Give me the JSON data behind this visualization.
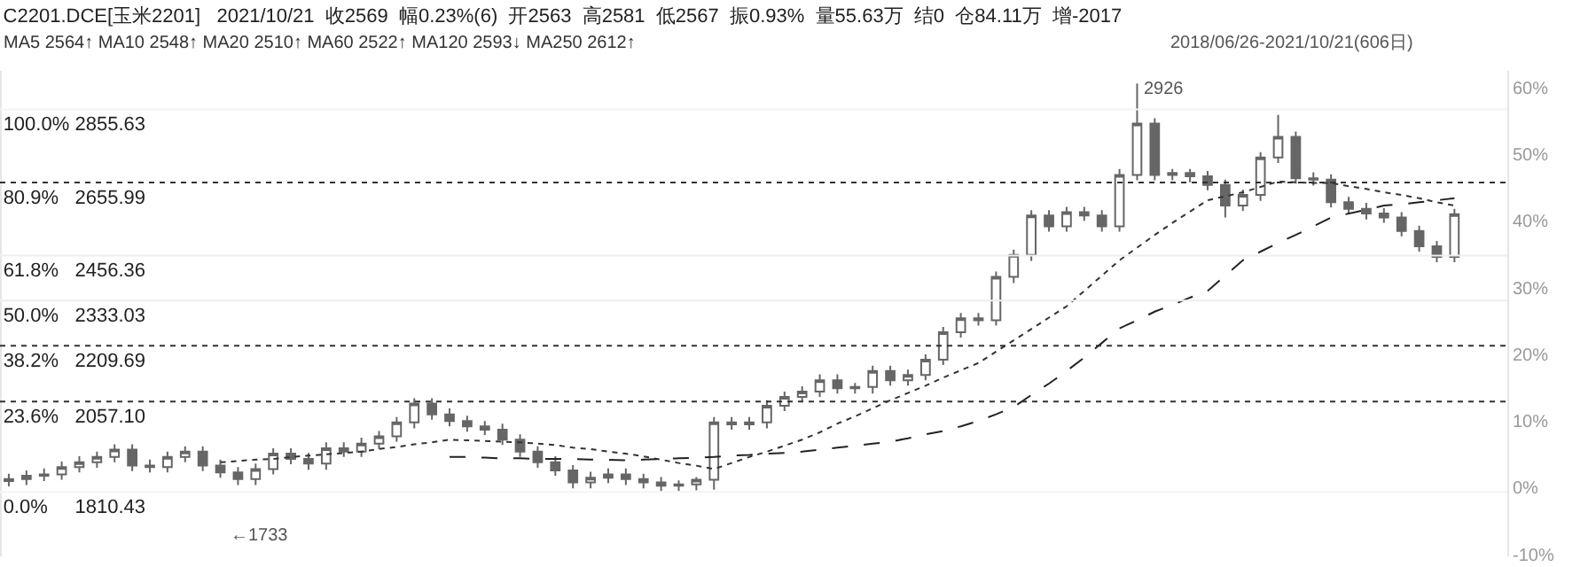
{
  "chart_data": {
    "type": "candlestick",
    "title": "C2201.DCE[玉米2201]   2021/10/21  收2569  幅0.23%(6)  开2563  高2581  低2567  振0.93%  量55.63万  结0  仓84.11万  增-2017",
    "subtitle": "MA5 2564↑ MA10 2548↑ MA20 2510↑ MA60 2522↑ MA120 2593↓ MA250 2612↑",
    "annotations": [
      "2018/06/26-2021/10/21(606日)",
      "2926",
      "←1733"
    ],
    "categories": [
      null,
      null,
      null,
      null,
      null,
      null,
      null,
      null,
      null,
      null,
      null,
      null,
      null,
      null,
      null,
      null,
      null,
      null,
      null,
      null,
      null,
      null,
      null,
      null,
      null,
      null,
      null,
      null,
      null,
      null,
      null,
      null,
      null,
      null,
      null,
      null,
      null,
      null,
      null,
      null,
      null,
      null,
      null,
      null,
      null,
      null,
      null,
      null,
      null,
      null,
      null,
      null,
      null,
      null,
      null,
      null,
      null,
      null,
      null,
      null,
      null,
      null,
      null,
      null,
      null,
      null,
      null,
      null,
      null,
      null,
      null,
      null,
      null,
      null,
      null,
      null,
      null,
      null,
      null,
      null,
      null,
      null,
      null
    ],
    "color": "#666666",
    "ohlc": [
      [
        1.0,
        2.1,
        0.2,
        1.3
      ],
      [
        1.3,
        2.6,
        0.4,
        1.8
      ],
      [
        1.8,
        2.9,
        1.0,
        2.0
      ],
      [
        2.0,
        3.9,
        1.2,
        3.1
      ],
      [
        3.1,
        4.7,
        2.3,
        3.8
      ],
      [
        3.8,
        5.4,
        3.0,
        4.6
      ],
      [
        4.6,
        6.5,
        3.8,
        5.7
      ],
      [
        5.7,
        6.5,
        2.5,
        3.3
      ],
      [
        3.3,
        4.2,
        2.3,
        3.1
      ],
      [
        3.1,
        5.4,
        2.3,
        4.6
      ],
      [
        4.6,
        6.2,
        3.8,
        5.4
      ],
      [
        5.4,
        6.2,
        2.5,
        3.3
      ],
      [
        3.3,
        4.2,
        1.5,
        2.3
      ],
      [
        2.3,
        3.1,
        0.4,
        1.3
      ],
      [
        1.3,
        3.6,
        0.4,
        2.8
      ],
      [
        2.8,
        5.9,
        2.0,
        5.1
      ],
      [
        5.1,
        5.9,
        3.5,
        4.3
      ],
      [
        4.3,
        5.2,
        2.7,
        3.6
      ],
      [
        3.6,
        6.8,
        2.7,
        5.9
      ],
      [
        5.9,
        6.8,
        4.6,
        5.4
      ],
      [
        5.4,
        7.5,
        4.6,
        6.6
      ],
      [
        6.6,
        8.5,
        5.8,
        7.7
      ],
      [
        7.7,
        10.6,
        6.9,
        9.8
      ],
      [
        9.8,
        13.4,
        8.9,
        12.6
      ],
      [
        12.6,
        13.4,
        10.2,
        11.0
      ],
      [
        11.0,
        11.9,
        9.2,
        10.0
      ],
      [
        10.0,
        10.8,
        8.4,
        9.2
      ],
      [
        9.2,
        10.0,
        7.9,
        8.7
      ],
      [
        8.7,
        9.6,
        6.4,
        7.2
      ],
      [
        7.2,
        8.0,
        4.6,
        5.4
      ],
      [
        5.4,
        6.2,
        3.0,
        3.8
      ],
      [
        3.8,
        4.7,
        1.8,
        2.6
      ],
      [
        2.6,
        3.4,
        -0.1,
        0.8
      ],
      [
        0.8,
        2.4,
        -0.1,
        1.5
      ],
      [
        1.5,
        2.9,
        0.7,
        2.0
      ],
      [
        2.0,
        2.9,
        0.4,
        1.3
      ],
      [
        1.3,
        2.1,
        -0.1,
        0.8
      ],
      [
        0.8,
        1.6,
        -0.5,
        0.3
      ],
      [
        0.3,
        1.1,
        -0.5,
        0.5
      ],
      [
        0.5,
        1.6,
        -0.4,
        1.2
      ],
      [
        1.2,
        10.6,
        -0.3,
        9.8
      ],
      [
        9.8,
        10.6,
        8.7,
        9.5
      ],
      [
        9.5,
        10.6,
        8.7,
        9.8
      ],
      [
        9.8,
        13.1,
        8.9,
        12.3
      ],
      [
        12.3,
        14.4,
        11.5,
        13.6
      ],
      [
        13.6,
        15.2,
        12.8,
        14.4
      ],
      [
        14.4,
        17.0,
        13.6,
        16.1
      ],
      [
        16.1,
        17.0,
        14.1,
        14.9
      ],
      [
        14.9,
        15.7,
        14.1,
        15.1
      ],
      [
        15.1,
        18.3,
        14.1,
        17.5
      ],
      [
        17.5,
        18.3,
        15.3,
        16.1
      ],
      [
        16.1,
        17.7,
        15.3,
        16.9
      ],
      [
        16.9,
        20.0,
        16.1,
        19.2
      ],
      [
        19.2,
        24.1,
        18.4,
        23.3
      ],
      [
        23.3,
        26.2,
        22.5,
        25.4
      ],
      [
        25.4,
        26.2,
        24.3,
        25.1
      ],
      [
        25.1,
        32.4,
        24.3,
        31.6
      ],
      [
        31.6,
        35.7,
        30.7,
        34.9
      ],
      [
        34.9,
        41.6,
        34.0,
        40.8
      ],
      [
        40.8,
        41.6,
        38.4,
        39.2
      ],
      [
        39.2,
        42.1,
        38.4,
        41.3
      ],
      [
        41.3,
        42.1,
        40.0,
        40.8
      ],
      [
        40.8,
        41.6,
        38.4,
        39.2
      ],
      [
        39.2,
        47.8,
        38.4,
        46.9
      ],
      [
        46.9,
        60.6,
        46.1,
        54.6
      ],
      [
        54.6,
        55.4,
        46.1,
        46.9
      ],
      [
        46.9,
        47.8,
        46.1,
        47.2
      ],
      [
        47.2,
        47.8,
        45.8,
        46.7
      ],
      [
        46.7,
        47.5,
        44.6,
        45.4
      ],
      [
        45.4,
        46.2,
        40.5,
        42.3
      ],
      [
        42.3,
        44.7,
        41.5,
        43.9
      ],
      [
        43.9,
        50.3,
        43.0,
        49.5
      ],
      [
        49.5,
        55.9,
        48.7,
        52.6
      ],
      [
        52.6,
        53.4,
        45.6,
        46.4
      ],
      [
        46.4,
        47.3,
        45.3,
        46.2
      ],
      [
        46.2,
        47.0,
        42.0,
        42.8
      ],
      [
        42.8,
        43.6,
        41.0,
        41.8
      ],
      [
        41.8,
        42.7,
        40.2,
        41.1
      ],
      [
        41.1,
        41.9,
        39.7,
        40.5
      ],
      [
        40.5,
        41.3,
        37.7,
        38.5
      ],
      [
        38.5,
        39.3,
        35.4,
        36.2
      ],
      [
        36.2,
        37.0,
        33.8,
        34.6
      ],
      [
        34.6,
        41.8,
        33.8,
        41.0
      ]
    ],
    "series": [
      {
        "type": "line",
        "color": "#333333",
        "line_style": "dotted",
        "values": [
          null,
          null,
          null,
          null,
          null,
          null,
          null,
          null,
          null,
          null,
          null,
          null,
          3.8,
          4.0,
          4.2,
          4.3,
          4.6,
          4.8,
          5.0,
          5.2,
          5.4,
          5.8,
          6.1,
          6.5,
          6.8,
          7.2,
          7.1,
          7.0,
          6.9,
          6.8,
          6.6,
          6.4,
          6.0,
          5.8,
          5.4,
          5.1,
          4.7,
          4.2,
          3.7,
          3.3,
          2.8,
          3.7,
          4.6,
          5.4,
          6.3,
          7.2,
          8.3,
          9.6,
          10.7,
          11.9,
          13.1,
          14.2,
          15.3,
          16.5,
          17.6,
          18.7,
          20.4,
          22.1,
          23.8,
          25.5,
          27.2,
          29.5,
          31.8,
          34.1,
          36.0,
          37.9,
          39.7,
          41.4,
          43.1,
          43.7,
          44.3,
          45.1,
          45.9,
          45.8,
          45.7,
          45.7,
          45.2,
          44.8,
          44.3,
          43.9,
          43.4,
          42.8,
          42.3
        ]
      },
      {
        "type": "line",
        "color": "#222222",
        "line_style": "dashed",
        "values": [
          null,
          null,
          null,
          null,
          null,
          null,
          null,
          null,
          null,
          null,
          null,
          null,
          null,
          null,
          null,
          null,
          null,
          null,
          null,
          null,
          null,
          null,
          null,
          null,
          null,
          4.6,
          4.6,
          4.5,
          4.4,
          4.4,
          4.3,
          4.3,
          4.3,
          4.2,
          4.2,
          4.1,
          4.2,
          4.3,
          4.4,
          4.5,
          4.6,
          4.8,
          4.9,
          5.1,
          5.2,
          5.4,
          5.7,
          6.0,
          6.3,
          6.6,
          6.9,
          7.4,
          8.0,
          8.5,
          9.2,
          10.0,
          11.0,
          12.1,
          13.9,
          15.6,
          17.5,
          19.5,
          21.7,
          23.9,
          25.1,
          26.4,
          27.4,
          28.5,
          29.5,
          31.8,
          34.1,
          35.4,
          36.7,
          37.9,
          39.2,
          40.5,
          41.1,
          41.7,
          42.3,
          42.5,
          42.8,
          43.1,
          43.4
        ]
      }
    ],
    "ylim": [
      -10.3,
      62.5
    ],
    "yticks": [
      {
        "value": 60,
        "label": "60%"
      },
      {
        "value": 50,
        "label": "50%"
      },
      {
        "value": 40,
        "label": "40%"
      },
      {
        "value": 30,
        "label": "30%"
      },
      {
        "value": 20,
        "label": "20%"
      },
      {
        "value": 10,
        "label": "10%"
      },
      {
        "value": 0,
        "label": "0%"
      },
      {
        "value": -10,
        "label": "-10%"
      }
    ],
    "y2lim": [
      1634.3,
      2960.8
    ],
    "y2ticks": [
      2855.63,
      2655.99,
      2456.36,
      2333.03,
      2209.69,
      {
        "value": 2057.1,
        "label": "2057.10"
      },
      1810.43
    ],
    "y3lim": [
      -16.85,
      110.06
    ],
    "y3ticks": [
      {
        "value": 100.0,
        "label": "100.0%"
      },
      {
        "value": 80.9,
        "label": "80.9%"
      },
      {
        "value": 61.8,
        "label": "61.8%"
      },
      {
        "value": 50.0,
        "label": "50.0%"
      },
      {
        "value": 38.2,
        "label": "38.2%"
      },
      {
        "value": 23.6,
        "label": "23.6%"
      },
      {
        "value": 0.0,
        "label": "0.0%"
      }
    ],
    "ref_lines": [
      {
        "axis": "y2",
        "value": 2855.63,
        "color": "#f4f4f4",
        "line_style": "solid"
      },
      {
        "axis": "y2",
        "value": 2655.99,
        "color": "#333333",
        "line_style": "dotted"
      },
      {
        "axis": "y2",
        "value": 2456.36,
        "color": "#eeeeee",
        "line_style": "solid"
      },
      {
        "axis": "y2",
        "value": 2333.03,
        "color": "#eeeeee",
        "line_style": "solid"
      },
      {
        "axis": "y2",
        "value": 2209.69,
        "color": "#333333",
        "line_style": "dotted"
      },
      {
        "axis": "y2",
        "value": 2057.1,
        "color": "#333333",
        "line_style": "dotted"
      },
      {
        "axis": "y2",
        "value": 1810.43,
        "color": "#f4f4f4",
        "line_style": "solid"
      }
    ],
    "grid": false,
    "tick_labels": "y"
  }
}
